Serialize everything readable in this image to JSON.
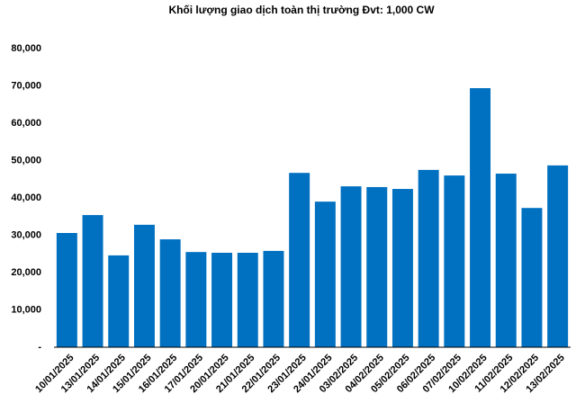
{
  "chart_data": {
    "type": "bar",
    "title": "Khối lượng giao dịch toàn thị trường Đvt: 1,000 CW",
    "categories": [
      "10/01/2025",
      "13/01/2025",
      "14/01/2025",
      "15/01/2025",
      "16/01/2025",
      "17/01/2025",
      "20/01/2025",
      "21/01/2025",
      "22/01/2025",
      "23/01/2025",
      "24/01/2025",
      "03/02/2025",
      "04/02/2025",
      "05/02/2025",
      "06/02/2025",
      "07/02/2025",
      "10/02/2025",
      "11/02/2025",
      "12/02/2025",
      "13/02/2025"
    ],
    "values": [
      30600,
      35400,
      24600,
      32800,
      28900,
      25500,
      25300,
      25300,
      25800,
      46700,
      39000,
      43100,
      42900,
      42400,
      47500,
      46000,
      69400,
      46500,
      37300,
      48700
    ],
    "color": "#0070c0",
    "ylim": [
      0,
      80000
    ],
    "yticks": [
      {
        "value": 0,
        "label": "-"
      },
      {
        "value": 10000,
        "label": "10,000"
      },
      {
        "value": 20000,
        "label": "20,000"
      },
      {
        "value": 30000,
        "label": "30,000"
      },
      {
        "value": 40000,
        "label": "40,000"
      },
      {
        "value": 50000,
        "label": "50,000"
      },
      {
        "value": 60000,
        "label": "60,000"
      },
      {
        "value": 70000,
        "label": "70,000"
      },
      {
        "value": 80000,
        "label": "80,000"
      }
    ],
    "grid": false
  }
}
